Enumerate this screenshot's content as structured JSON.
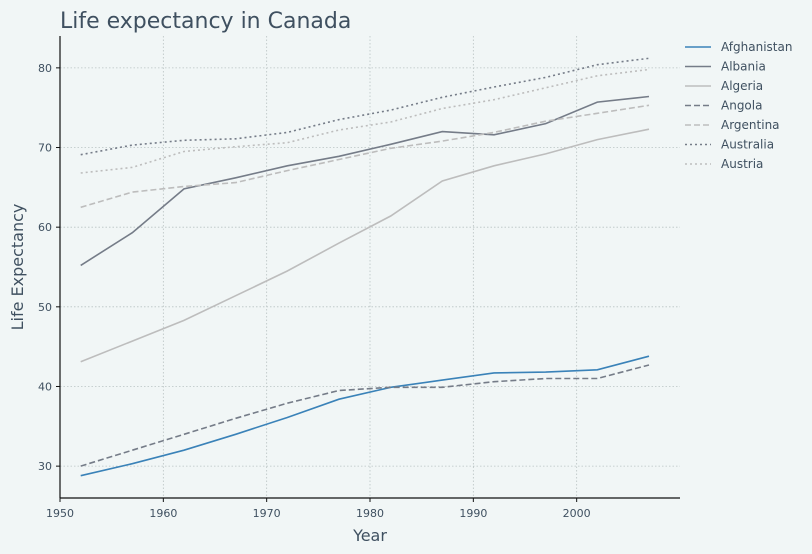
{
  "chart_data": {
    "type": "line",
    "title": "Life expectancy in Canada",
    "xlabel": "Year",
    "ylabel": "Life Expectancy",
    "xlim": [
      1950,
      2010
    ],
    "ylim": [
      26,
      84
    ],
    "xticks": [
      1950,
      1960,
      1970,
      1980,
      1990,
      2000
    ],
    "yticks": [
      30,
      40,
      50,
      60,
      70,
      80
    ],
    "grid": true,
    "legend_position": "outside-top-right",
    "x": [
      1952,
      1957,
      1962,
      1967,
      1972,
      1977,
      1982,
      1987,
      1992,
      1997,
      2002,
      2007
    ],
    "series": [
      {
        "name": "Afghanistan",
        "color": "#3a82b8",
        "dash": "solid",
        "values": [
          28.8,
          30.3,
          32.0,
          34.0,
          36.1,
          38.4,
          39.9,
          40.8,
          41.7,
          41.8,
          42.1,
          43.8
        ]
      },
      {
        "name": "Albania",
        "color": "#757c88",
        "dash": "solid",
        "values": [
          55.2,
          59.3,
          64.8,
          66.2,
          67.7,
          68.9,
          70.4,
          72.0,
          71.6,
          73.0,
          75.7,
          76.4
        ]
      },
      {
        "name": "Algeria",
        "color": "#bdbdbd",
        "dash": "solid",
        "values": [
          43.1,
          45.7,
          48.3,
          51.4,
          54.5,
          58.0,
          61.4,
          65.8,
          67.7,
          69.2,
          71.0,
          72.3
        ]
      },
      {
        "name": "Angola",
        "color": "#757c88",
        "dash": "dashed",
        "values": [
          30.0,
          32.0,
          34.0,
          36.0,
          37.9,
          39.5,
          39.9,
          39.9,
          40.6,
          41.0,
          41.0,
          42.7
        ]
      },
      {
        "name": "Argentina",
        "color": "#bdbdbd",
        "dash": "dashed",
        "values": [
          62.5,
          64.4,
          65.1,
          65.6,
          67.1,
          68.5,
          69.9,
          70.8,
          71.9,
          73.3,
          74.3,
          75.3
        ]
      },
      {
        "name": "Australia",
        "color": "#757c88",
        "dash": "dotted",
        "values": [
          69.1,
          70.3,
          70.9,
          71.1,
          71.9,
          73.5,
          74.7,
          76.3,
          77.6,
          78.8,
          80.4,
          81.2
        ]
      },
      {
        "name": "Austria",
        "color": "#bdbdbd",
        "dash": "dotted",
        "values": [
          66.8,
          67.5,
          69.5,
          70.1,
          70.6,
          72.2,
          73.2,
          74.9,
          76.0,
          77.5,
          79.0,
          79.8
        ]
      }
    ]
  }
}
